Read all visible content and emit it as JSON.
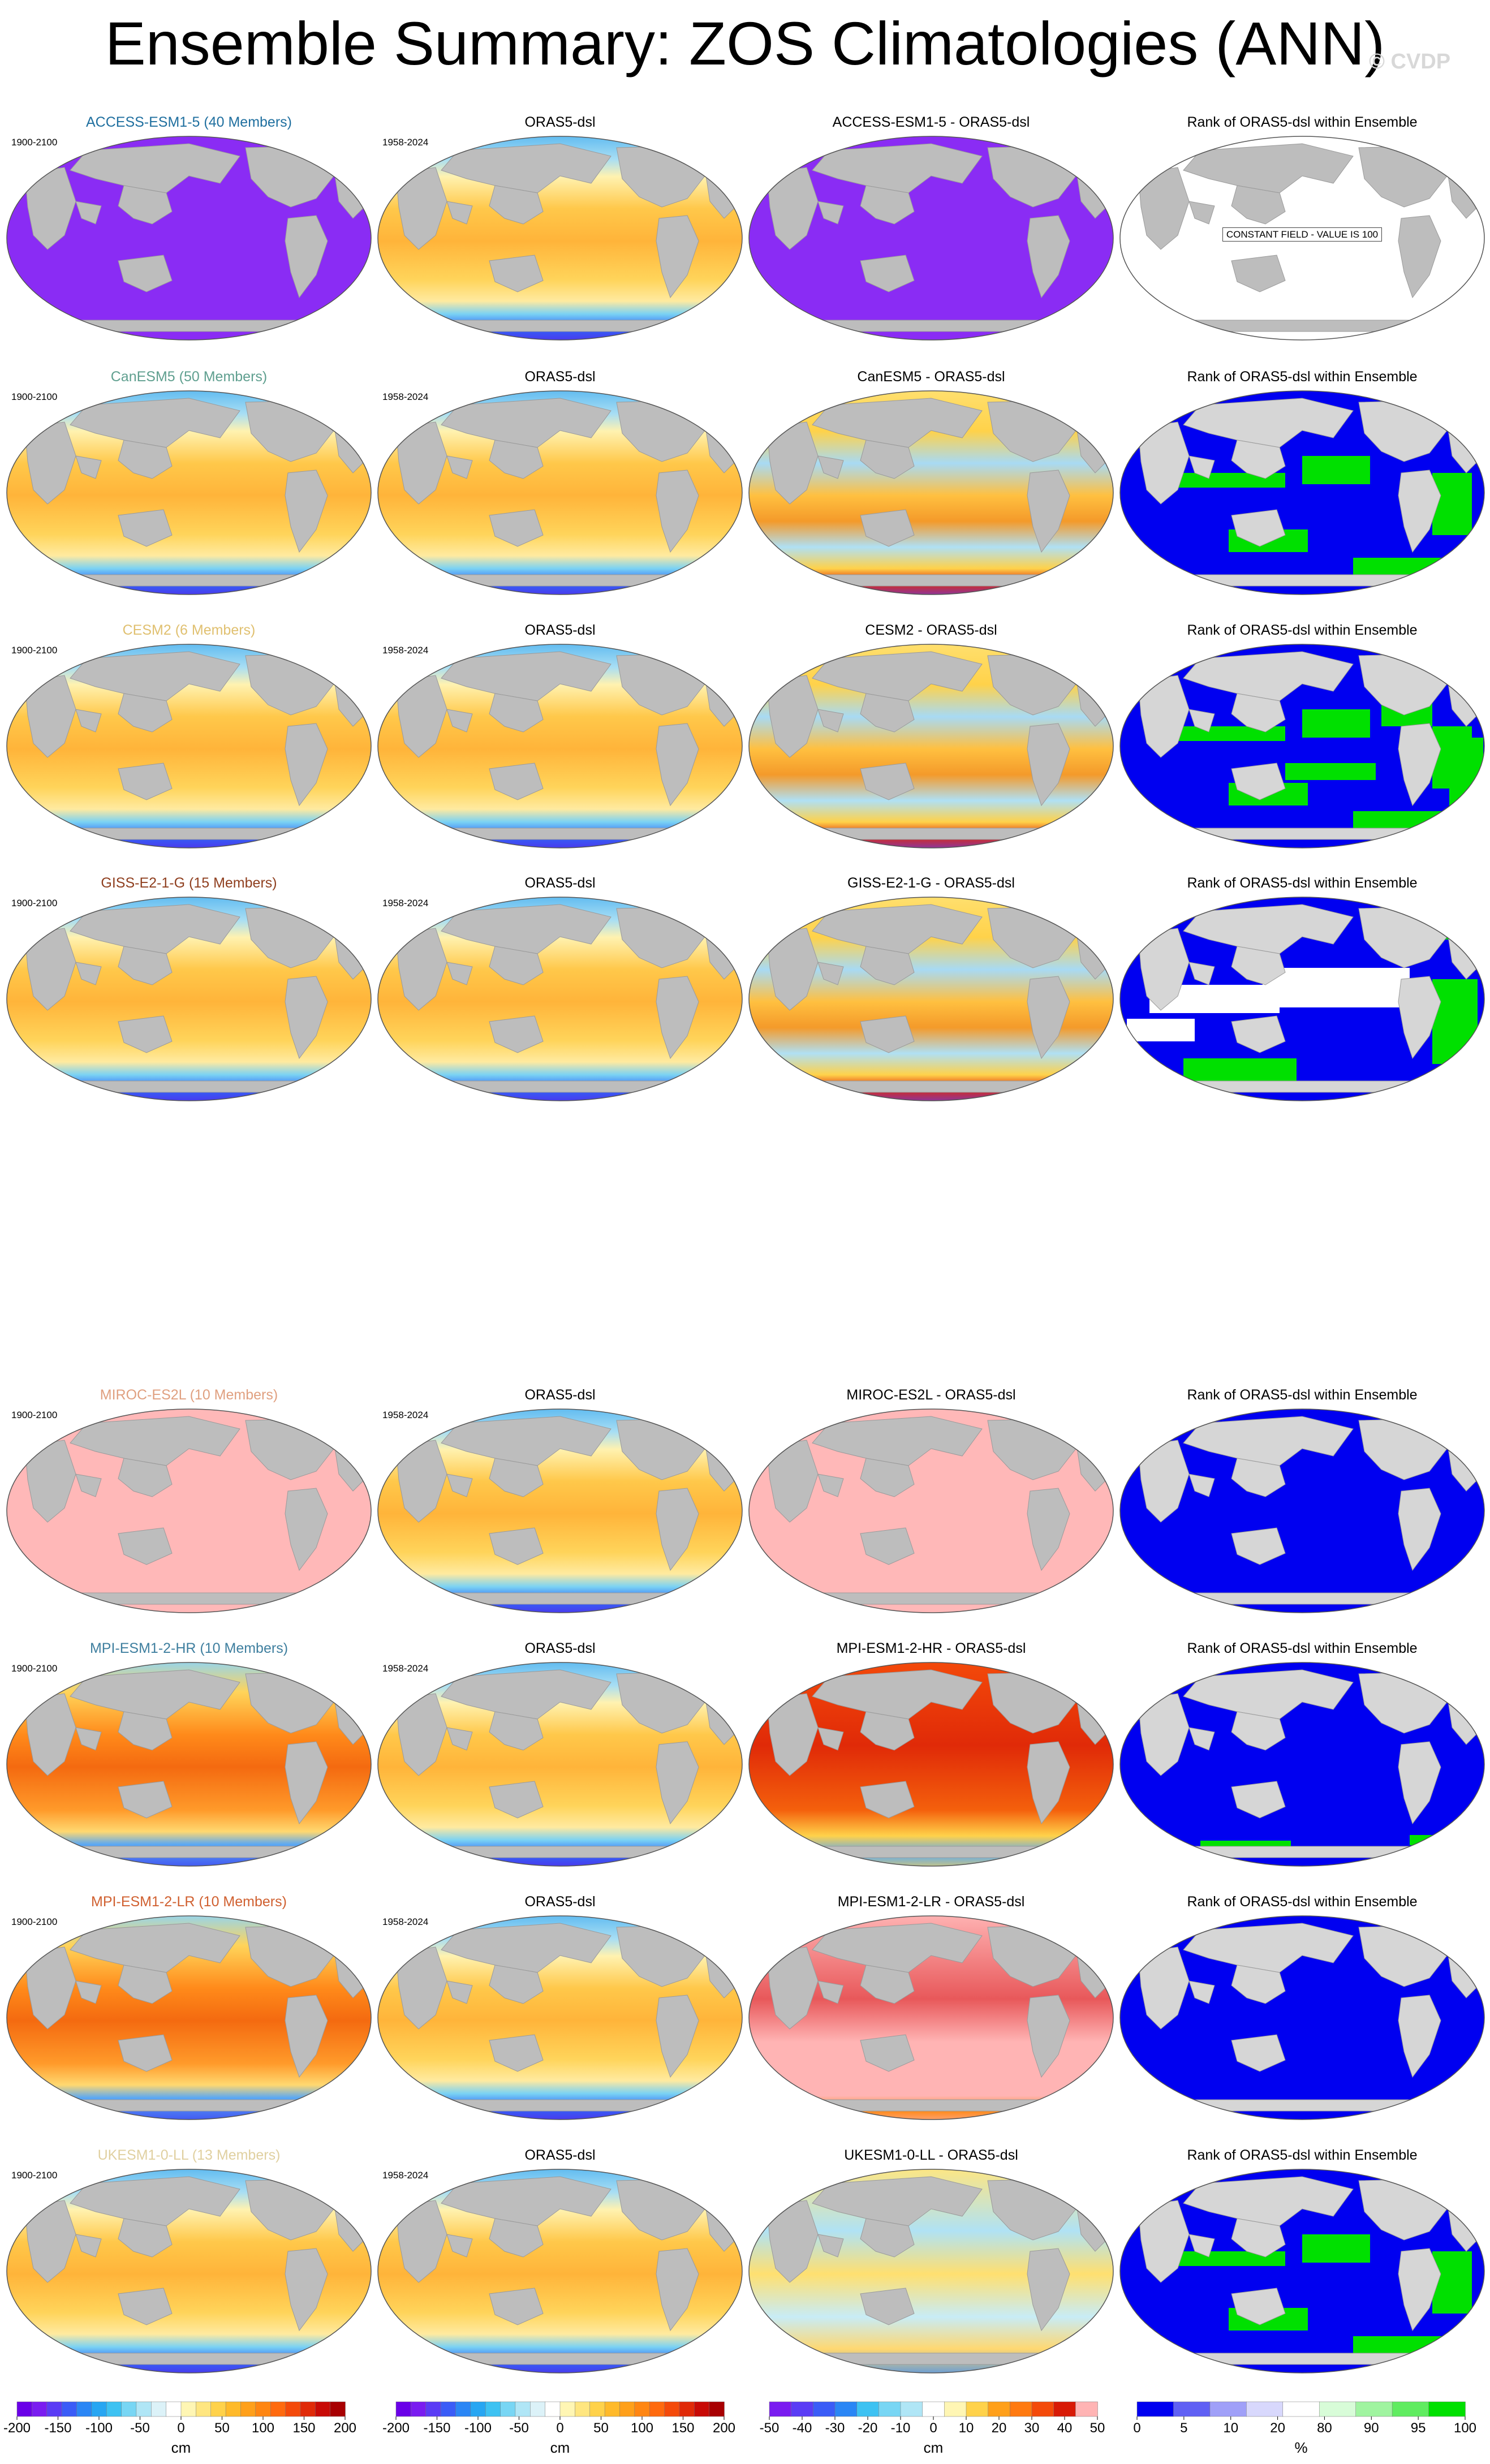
{
  "title": "Ensemble Summary: ZOS Climatologies (ANN)",
  "watermark": "© CVDP",
  "rank_title": "Rank of ORAS5-dsl within Ensemble",
  "obs_name": "ORAS5-dsl",
  "obs_period": "1958-2024",
  "model_period": "1900-2100",
  "constant_note": "CONSTANT FIELD - VALUE IS 100",
  "rows": [
    {
      "model_label": "ACCESS-ESM1-5 (40 Members)",
      "diff_label": "ACCESS-ESM1-5 - ORAS5-dsl",
      "label_color": "#1f6f9f",
      "model_style": "const_purple",
      "diff_style": "const_purple",
      "rank_style": "white",
      "constant": true
    },
    {
      "model_label": "CanESM5 (50 Members)",
      "diff_label": "CanESM5 - ORAS5-dsl",
      "label_color": "#5f9f8f",
      "model_style": "obs",
      "diff_style": "mixed",
      "rank_style": "blue_green",
      "constant": false
    },
    {
      "model_label": "CESM2 (6 Members)",
      "diff_label": "CESM2 - ORAS5-dsl",
      "label_color": "#e0c070",
      "model_style": "obs",
      "diff_style": "mixed",
      "rank_style": "blue_green_more",
      "constant": false
    },
    {
      "model_label": "GISS-E2-1-G (15 Members)",
      "diff_label": "GISS-E2-1-G - ORAS5-dsl",
      "label_color": "#8f3f1f",
      "model_style": "obs",
      "diff_style": "mixed",
      "rank_style": "blue_white_green",
      "constant": false
    },
    {
      "model_label": "MIROC-ES2L (10 Members)",
      "diff_label": "MIROC-ES2L - ORAS5-dsl",
      "label_color": "#e0a080",
      "model_style": "const_pink",
      "diff_style": "const_pink",
      "rank_style": "blue",
      "constant": false
    },
    {
      "model_label": "MPI-ESM1-2-HR (10 Members)",
      "diff_label": "MPI-ESM1-2-HR - ORAS5-dsl",
      "label_color": "#3f7f9f",
      "model_style": "warm",
      "diff_style": "red",
      "rank_style": "blue_bit_green",
      "constant": false
    },
    {
      "model_label": "MPI-ESM1-2-LR (10 Members)",
      "diff_label": "MPI-ESM1-2-LR - ORAS5-dsl",
      "label_color": "#d06030",
      "model_style": "warm",
      "diff_style": "pink_red",
      "rank_style": "blue",
      "constant": false
    },
    {
      "model_label": "UKESM1-0-LL (13 Members)",
      "diff_label": "UKESM1-0-LL - ORAS5-dsl",
      "label_color": "#e0d0a0",
      "model_style": "obs",
      "diff_style": "mixed_light",
      "rank_style": "blue_green",
      "constant": false
    }
  ],
  "colorbars": [
    {
      "unit": "cm",
      "ticks": [
        "-200",
        "-150",
        "-100",
        "-50",
        "0",
        "50",
        "100",
        "150",
        "200"
      ],
      "colors": [
        "#6a00e8",
        "#7a1cf0",
        "#5a3cf5",
        "#3a5cf7",
        "#2a86f5",
        "#27a6f2",
        "#3dc2f2",
        "#78d6f4",
        "#b0e6f6",
        "#dcf2f8",
        "#ffffff",
        "#fff6b4",
        "#ffe680",
        "#ffd24a",
        "#ffba2a",
        "#ffa01a",
        "#ff8612",
        "#ff6a0e",
        "#f44a0a",
        "#e02a08",
        "#c80a06",
        "#a80002"
      ]
    },
    {
      "unit": "cm",
      "ticks": [
        "-200",
        "-150",
        "-100",
        "-50",
        "0",
        "50",
        "100",
        "150",
        "200"
      ],
      "colors": [
        "#6a00e8",
        "#7a1cf0",
        "#5a3cf5",
        "#3a5cf7",
        "#2a86f5",
        "#27a6f2",
        "#3dc2f2",
        "#78d6f4",
        "#b0e6f6",
        "#dcf2f8",
        "#ffffff",
        "#fff6b4",
        "#ffe680",
        "#ffd24a",
        "#ffba2a",
        "#ffa01a",
        "#ff8612",
        "#ff6a0e",
        "#f44a0a",
        "#e02a08",
        "#c80a06",
        "#a80002"
      ]
    },
    {
      "unit": "cm",
      "ticks": [
        "-50",
        "-40",
        "-30",
        "-20",
        "-10",
        "0",
        "10",
        "20",
        "30",
        "40",
        "50"
      ],
      "colors": [
        "#7a1cf0",
        "#5a3cf5",
        "#3a5cf7",
        "#2a86f5",
        "#3dc2f2",
        "#78d6f4",
        "#b0e6f6",
        "#ffffff",
        "#fff6b4",
        "#ffd24a",
        "#ffa01a",
        "#ff7a10",
        "#f44a0a",
        "#d81a06",
        "#ffb4b4"
      ]
    },
    {
      "unit": "%",
      "ticks": [
        "0",
        "5",
        "10",
        "20",
        "80",
        "90",
        "95",
        "100"
      ],
      "colors": [
        "#0000f0",
        "#6060f4",
        "#a0a0f8",
        "#d8d8fc",
        "#ffffff",
        "#d8fcd8",
        "#a0f4a0",
        "#60ec60",
        "#00e000"
      ]
    }
  ]
}
